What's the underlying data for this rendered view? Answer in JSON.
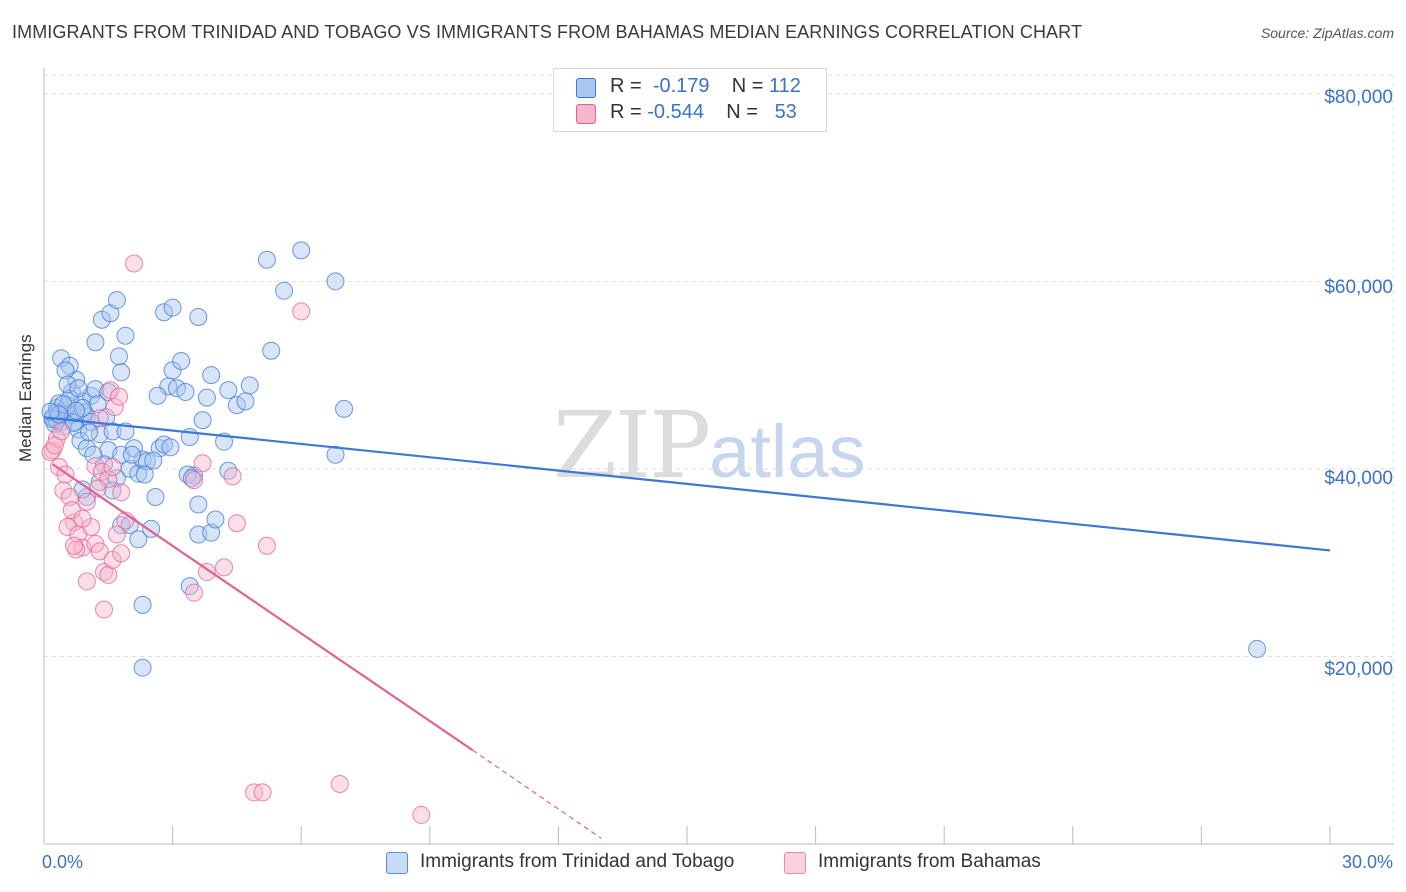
{
  "header": {
    "title": "IMMIGRANTS FROM TRINIDAD AND TOBAGO VS IMMIGRANTS FROM BAHAMAS MEDIAN EARNINGS CORRELATION CHART",
    "source": "Source: ZipAtlas.com"
  },
  "watermark": {
    "zip": "ZIP",
    "atlas": "atlas"
  },
  "legend_top": {
    "rows": [
      {
        "r_label": "R =",
        "r_value": "-0.179",
        "n_label": "N =",
        "n_value": "112",
        "color": "#a9c6f0"
      },
      {
        "r_label": "R =",
        "r_value": "-0.544",
        "n_label": "N =",
        "n_value": "53",
        "color": "#f6b6cc"
      }
    ]
  },
  "legend_bottom": {
    "items": [
      {
        "label": "Immigrants from Trinidad and Tobago",
        "color": "#a9c6f0"
      },
      {
        "label": "Immigrants from Bahamas",
        "color": "#f6b6cc"
      }
    ]
  },
  "chart_data": {
    "type": "scatter",
    "title": "IMMIGRANTS FROM TRINIDAD AND TOBAGO VS IMMIGRANTS FROM BAHAMAS MEDIAN EARNINGS CORRELATION CHART",
    "xlabel": "",
    "ylabel": "Median Earnings",
    "xlim": [
      0,
      30
    ],
    "ylim": [
      0,
      82000
    ],
    "x_tick_labels": [
      "0.0%",
      "30.0%"
    ],
    "y_ticks": [
      20000,
      40000,
      60000,
      80000
    ],
    "y_tick_labels": [
      "$20,000",
      "$40,000",
      "$60,000",
      "$80,000"
    ],
    "grid": true,
    "series": [
      {
        "name": "Immigrants from Trinidad and Tobago",
        "color": "#3b78d8",
        "fill": "#a9c6f0",
        "trend": {
          "x": [
            0,
            30
          ],
          "y": [
            45500,
            31300
          ]
        },
        "points": [
          [
            0.2,
            45500
          ],
          [
            0.3,
            46500
          ],
          [
            0.4,
            45000
          ],
          [
            0.25,
            44800
          ],
          [
            0.5,
            46200
          ],
          [
            0.6,
            45800
          ],
          [
            0.35,
            47000
          ],
          [
            0.45,
            44500
          ],
          [
            0.55,
            46800
          ],
          [
            0.3,
            45200
          ],
          [
            0.7,
            45000
          ],
          [
            0.8,
            44200
          ],
          [
            0.9,
            47200
          ],
          [
            1.0,
            45600
          ],
          [
            0.65,
            48200
          ],
          [
            0.75,
            49500
          ],
          [
            0.85,
            43000
          ],
          [
            0.95,
            46000
          ],
          [
            1.1,
            47800
          ],
          [
            0.4,
            51800
          ],
          [
            0.6,
            51000
          ],
          [
            0.5,
            50500
          ],
          [
            1.2,
            48500
          ],
          [
            1.3,
            43700
          ],
          [
            1.5,
            42000
          ],
          [
            1.6,
            44000
          ],
          [
            1.4,
            40500
          ],
          [
            1.7,
            39000
          ],
          [
            1.8,
            41500
          ],
          [
            2.0,
            40000
          ],
          [
            1.9,
            44000
          ],
          [
            2.1,
            42200
          ],
          [
            2.2,
            39500
          ],
          [
            2.3,
            41000
          ],
          [
            2.4,
            40800
          ],
          [
            1.2,
            53500
          ],
          [
            1.35,
            55900
          ],
          [
            1.55,
            56600
          ],
          [
            1.7,
            58000
          ],
          [
            1.9,
            54200
          ],
          [
            1.75,
            52000
          ],
          [
            1.8,
            50300
          ],
          [
            1.5,
            48200
          ],
          [
            1.25,
            46900
          ],
          [
            1.1,
            45000
          ],
          [
            1.0,
            37000
          ],
          [
            0.9,
            37800
          ],
          [
            1.3,
            38600
          ],
          [
            1.6,
            37700
          ],
          [
            1.8,
            34000
          ],
          [
            2.0,
            34000
          ],
          [
            2.2,
            32500
          ],
          [
            2.5,
            33600
          ],
          [
            2.6,
            37000
          ],
          [
            2.7,
            42200
          ],
          [
            2.8,
            42600
          ],
          [
            2.9,
            48800
          ],
          [
            2.65,
            47800
          ],
          [
            3.0,
            50500
          ],
          [
            3.1,
            48600
          ],
          [
            3.2,
            51500
          ],
          [
            3.3,
            48200
          ],
          [
            3.4,
            43400
          ],
          [
            3.5,
            39300
          ],
          [
            3.6,
            36200
          ],
          [
            3.7,
            45200
          ],
          [
            3.8,
            47600
          ],
          [
            3.9,
            50000
          ],
          [
            3.6,
            33000
          ],
          [
            3.9,
            33200
          ],
          [
            4.0,
            34600
          ],
          [
            3.4,
            27500
          ],
          [
            4.2,
            42900
          ],
          [
            4.3,
            48400
          ],
          [
            4.5,
            46800
          ],
          [
            4.7,
            47200
          ],
          [
            4.8,
            48900
          ],
          [
            2.3,
            25500
          ],
          [
            2.3,
            18800
          ],
          [
            5.2,
            62300
          ],
          [
            6.0,
            63300
          ],
          [
            5.6,
            59000
          ],
          [
            6.8,
            60000
          ],
          [
            5.3,
            52600
          ],
          [
            7.0,
            46400
          ],
          [
            6.8,
            41500
          ],
          [
            2.8,
            56700
          ],
          [
            3.6,
            56200
          ],
          [
            3.0,
            57200
          ],
          [
            4.3,
            39800
          ],
          [
            0.3,
            46000
          ],
          [
            0.2,
            45300
          ],
          [
            0.7,
            44900
          ],
          [
            1.0,
            42200
          ],
          [
            1.15,
            41500
          ],
          [
            0.9,
            46500
          ],
          [
            0.6,
            47500
          ],
          [
            2.05,
            41500
          ],
          [
            2.35,
            39400
          ],
          [
            0.55,
            49000
          ],
          [
            0.8,
            48600
          ],
          [
            1.45,
            45500
          ],
          [
            3.35,
            39400
          ],
          [
            28.3,
            20800
          ],
          [
            0.45,
            46900
          ],
          [
            0.35,
            45800
          ],
          [
            0.15,
            46100
          ],
          [
            0.75,
            46200
          ],
          [
            1.05,
            43900
          ],
          [
            2.55,
            40900
          ],
          [
            2.95,
            42300
          ],
          [
            3.45,
            39000
          ]
        ]
      },
      {
        "name": "Immigrants from Bahamas",
        "color": "#e26391",
        "fill": "#f6b6cc",
        "trend": {
          "x": [
            0.2,
            10.0
          ],
          "y": [
            40500,
            10000
          ]
        },
        "trend_dashed": {
          "x": [
            10.0,
            13.0
          ],
          "y": [
            10000,
            600
          ]
        },
        "points": [
          [
            0.2,
            42000
          ],
          [
            0.3,
            43200
          ],
          [
            0.15,
            41800
          ],
          [
            0.4,
            44000
          ],
          [
            0.25,
            42500
          ],
          [
            0.35,
            40200
          ],
          [
            0.5,
            39400
          ],
          [
            0.45,
            37700
          ],
          [
            0.6,
            37000
          ],
          [
            0.7,
            34300
          ],
          [
            0.55,
            33800
          ],
          [
            0.65,
            35600
          ],
          [
            0.8,
            33000
          ],
          [
            0.9,
            31600
          ],
          [
            0.75,
            31400
          ],
          [
            1.0,
            36500
          ],
          [
            1.1,
            33800
          ],
          [
            1.2,
            32000
          ],
          [
            1.3,
            31200
          ],
          [
            1.4,
            29000
          ],
          [
            1.5,
            28700
          ],
          [
            1.6,
            30300
          ],
          [
            1.7,
            33000
          ],
          [
            1.8,
            31000
          ],
          [
            1.9,
            34500
          ],
          [
            1.0,
            28000
          ],
          [
            1.4,
            25000
          ],
          [
            1.2,
            40300
          ],
          [
            1.35,
            39700
          ],
          [
            1.5,
            38900
          ],
          [
            1.6,
            40200
          ],
          [
            1.3,
            45400
          ],
          [
            1.55,
            48400
          ],
          [
            1.65,
            46600
          ],
          [
            1.75,
            47700
          ],
          [
            2.1,
            61900
          ],
          [
            6.0,
            56800
          ],
          [
            3.7,
            40600
          ],
          [
            4.4,
            39200
          ],
          [
            4.5,
            34200
          ],
          [
            3.5,
            26800
          ],
          [
            3.8,
            29000
          ],
          [
            4.2,
            29500
          ],
          [
            5.2,
            31800
          ],
          [
            4.9,
            5500
          ],
          [
            5.1,
            5500
          ],
          [
            6.9,
            6400
          ],
          [
            8.8,
            3100
          ],
          [
            0.9,
            34700
          ],
          [
            0.7,
            31800
          ],
          [
            1.25,
            37900
          ],
          [
            1.8,
            37500
          ],
          [
            3.5,
            38800
          ]
        ]
      }
    ]
  }
}
